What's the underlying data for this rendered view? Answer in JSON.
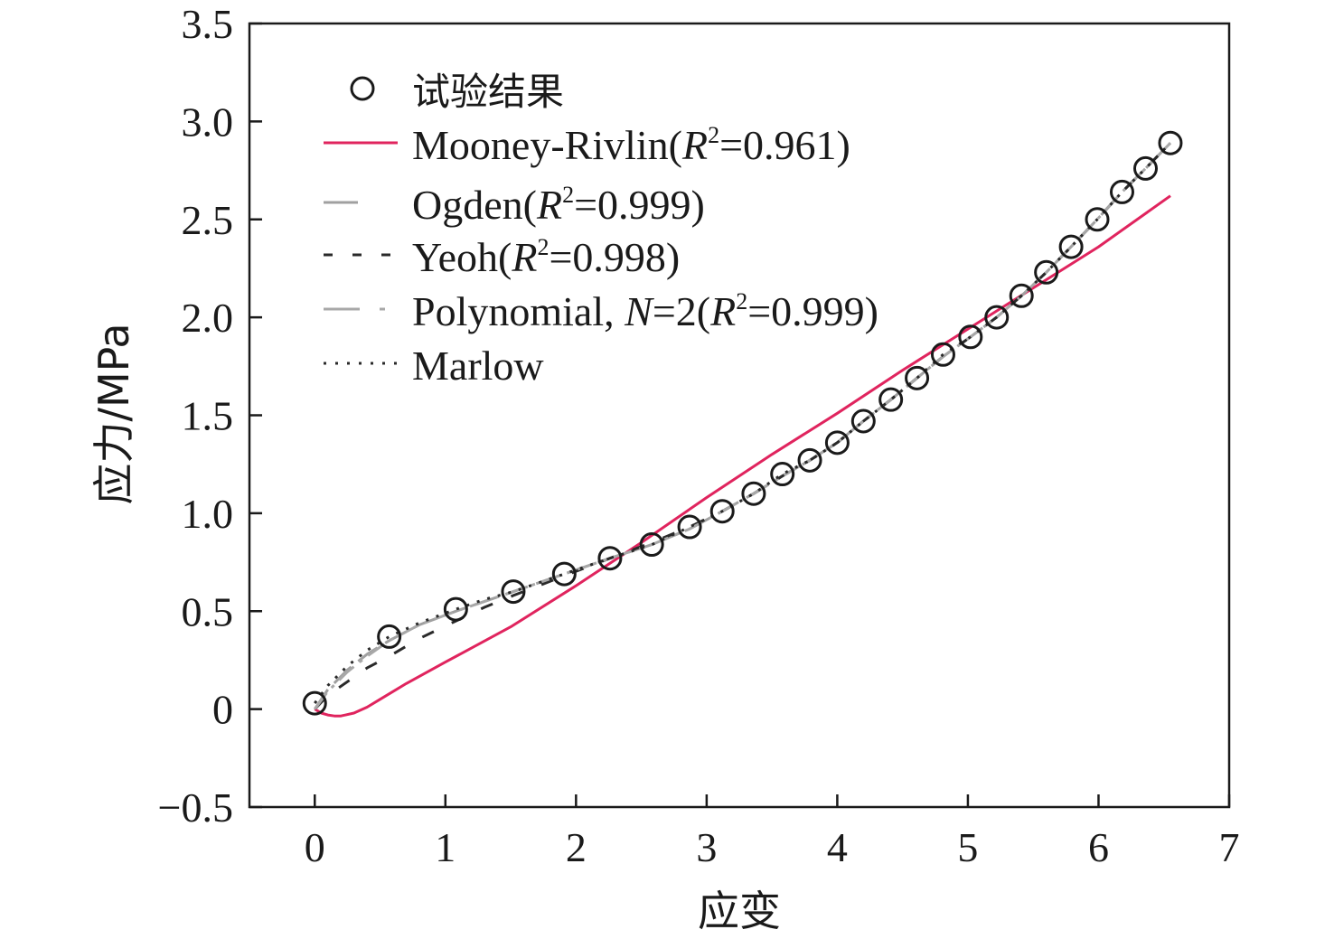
{
  "chart_data": {
    "type": "line",
    "xlabel": "应变",
    "ylabel": "应力/MPa",
    "xlim": [
      -0.5,
      7
    ],
    "ylim": [
      -0.5,
      3.5
    ],
    "xticks": [
      0,
      1,
      2,
      3,
      4,
      5,
      6,
      7
    ],
    "yticks": [
      -0.5,
      0,
      0.5,
      1.0,
      1.5,
      2.0,
      2.5,
      3.0,
      3.5
    ],
    "xtick_labels": [
      "0",
      "1",
      "2",
      "3",
      "4",
      "5",
      "6",
      "7"
    ],
    "ytick_labels": [
      "−0.5",
      "0",
      "0.5",
      "1.0",
      "1.5",
      "2.0",
      "2.5",
      "3.0",
      "3.5"
    ],
    "legend_position": "top-left",
    "grid": false,
    "legend": [
      {
        "label": "试验结果",
        "style": "marker"
      },
      {
        "label": "Mooney-Rivlin(R²=0.961)",
        "prefix": "Mooney-Rivlin(",
        "italic": "R",
        "sup": "2",
        "suffix": "=0.961)",
        "style": "solid",
        "color": "#e0245e"
      },
      {
        "label": "Ogden(R²=0.999)",
        "prefix": "Ogden(",
        "italic": "R",
        "sup": "2",
        "suffix": "=0.999)",
        "style": "longdash",
        "color": "#a0a0a0"
      },
      {
        "label": "Yeoh(R²=0.998)",
        "prefix": "Yeoh(",
        "italic": "R",
        "sup": "2",
        "suffix": "=0.998)",
        "style": "dashed",
        "color": "#2a2a2a"
      },
      {
        "label": "Polynomial, N=2(R²=0.999)",
        "prefix": "Polynomial, ",
        "italic2": "N",
        "mid": "=2(",
        "italic": "R",
        "sup": "2",
        "suffix": "=0.999)",
        "style": "dashdot",
        "color": "#a8a8a8"
      },
      {
        "label": "Marlow",
        "style": "dotted",
        "color": "#2a2a2a"
      }
    ],
    "series": [
      {
        "name": "试验结果",
        "kind": "markers",
        "x": [
          0.0,
          0.57,
          1.08,
          1.52,
          1.91,
          2.26,
          2.58,
          2.87,
          3.12,
          3.36,
          3.58,
          3.79,
          4.0,
          4.2,
          4.41,
          4.61,
          4.81,
          5.02,
          5.22,
          5.41,
          5.6,
          5.79,
          5.99,
          6.18,
          6.36,
          6.55
        ],
        "y": [
          0.03,
          0.37,
          0.51,
          0.6,
          0.69,
          0.77,
          0.84,
          0.93,
          1.01,
          1.1,
          1.2,
          1.27,
          1.36,
          1.47,
          1.58,
          1.69,
          1.81,
          1.9,
          2.0,
          2.11,
          2.23,
          2.36,
          2.5,
          2.64,
          2.76,
          2.89
        ]
      },
      {
        "name": "Mooney-Rivlin",
        "kind": "line",
        "color": "#e0245e",
        "x": [
          0.0,
          0.05,
          0.1,
          0.15,
          0.2,
          0.3,
          0.4,
          0.5,
          0.7,
          1.0,
          1.5,
          2.0,
          2.5,
          3.0,
          3.5,
          4.0,
          4.5,
          5.0,
          5.5,
          6.0,
          6.55
        ],
        "y": [
          0.0,
          -0.02,
          -0.03,
          -0.035,
          -0.035,
          -0.02,
          0.01,
          0.05,
          0.13,
          0.24,
          0.42,
          0.63,
          0.85,
          1.08,
          1.3,
          1.51,
          1.73,
          1.94,
          2.15,
          2.36,
          2.62
        ]
      },
      {
        "name": "Ogden",
        "kind": "line",
        "color": "#a0a0a0",
        "x": [
          0.0,
          0.1,
          0.25,
          0.4,
          0.57,
          0.8,
          1.08,
          1.3,
          1.52,
          1.91,
          2.26,
          2.58,
          2.87,
          3.12,
          3.36,
          3.58,
          3.79,
          4.0,
          4.2,
          4.41,
          4.61,
          4.81,
          5.02,
          5.22,
          5.41,
          5.6,
          5.79,
          5.99,
          6.18,
          6.36,
          6.55
        ],
        "y": [
          0.0,
          0.1,
          0.2,
          0.28,
          0.35,
          0.43,
          0.5,
          0.55,
          0.6,
          0.69,
          0.77,
          0.84,
          0.92,
          1.01,
          1.1,
          1.19,
          1.27,
          1.36,
          1.47,
          1.58,
          1.69,
          1.8,
          1.9,
          2.0,
          2.11,
          2.23,
          2.36,
          2.5,
          2.64,
          2.76,
          2.89
        ]
      },
      {
        "name": "Yeoh",
        "kind": "line",
        "color": "#2a2a2a",
        "x": [
          0.0,
          0.1,
          0.25,
          0.4,
          0.57,
          0.8,
          1.08,
          1.3,
          1.52,
          1.91,
          2.26,
          2.58,
          2.87,
          3.12,
          3.36,
          3.58,
          3.79,
          4.0,
          4.2,
          4.41,
          4.61,
          4.81,
          5.02,
          5.22,
          5.41,
          5.6,
          5.79,
          5.99,
          6.18,
          6.36,
          6.55
        ],
        "y": [
          0.0,
          0.07,
          0.14,
          0.21,
          0.27,
          0.36,
          0.45,
          0.52,
          0.58,
          0.68,
          0.77,
          0.85,
          0.93,
          1.01,
          1.1,
          1.19,
          1.27,
          1.36,
          1.47,
          1.58,
          1.69,
          1.8,
          1.9,
          2.0,
          2.11,
          2.23,
          2.36,
          2.5,
          2.64,
          2.76,
          2.89
        ]
      },
      {
        "name": "Polynomial, N=2",
        "kind": "line",
        "color": "#a8a8a8",
        "x": [
          0.0,
          0.1,
          0.25,
          0.4,
          0.57,
          0.8,
          1.08,
          1.3,
          1.52,
          1.91,
          2.26,
          2.58,
          2.87,
          3.12,
          3.36,
          3.58,
          3.79,
          4.0,
          4.2,
          4.41,
          4.61,
          4.81,
          5.02,
          5.22,
          5.41,
          5.6,
          5.79,
          5.99,
          6.18,
          6.36,
          6.55
        ],
        "y": [
          0.0,
          0.09,
          0.19,
          0.27,
          0.35,
          0.43,
          0.5,
          0.55,
          0.6,
          0.69,
          0.77,
          0.84,
          0.92,
          1.01,
          1.1,
          1.19,
          1.27,
          1.36,
          1.47,
          1.58,
          1.69,
          1.8,
          1.9,
          2.0,
          2.11,
          2.23,
          2.36,
          2.5,
          2.64,
          2.76,
          2.89
        ]
      },
      {
        "name": "Marlow",
        "kind": "line",
        "color": "#2a2a2a",
        "x": [
          0.0,
          0.1,
          0.25,
          0.4,
          0.57,
          0.8,
          1.08,
          1.3,
          1.52,
          1.91,
          2.26,
          2.58,
          2.87,
          3.12,
          3.36,
          3.58,
          3.79,
          4.0,
          4.2,
          4.41,
          4.61,
          4.81,
          5.02,
          5.22,
          5.41,
          5.6,
          5.79,
          5.99,
          6.18,
          6.36,
          6.55
        ],
        "y": [
          0.03,
          0.12,
          0.22,
          0.3,
          0.37,
          0.44,
          0.51,
          0.56,
          0.6,
          0.69,
          0.77,
          0.84,
          0.93,
          1.01,
          1.1,
          1.2,
          1.27,
          1.36,
          1.47,
          1.58,
          1.69,
          1.81,
          1.9,
          2.0,
          2.11,
          2.23,
          2.36,
          2.5,
          2.64,
          2.76,
          2.89
        ]
      }
    ],
    "accent_colors": {
      "mooney": "#e0245e",
      "fit_lines": [
        "#a0a0a0",
        "#4aa3c4",
        "#c9b24a"
      ]
    }
  }
}
